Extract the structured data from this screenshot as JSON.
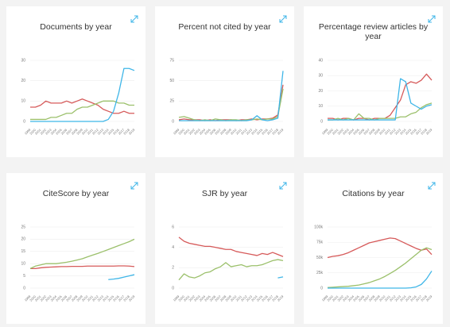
{
  "chart_data": [
    {
      "type": "line",
      "title": "Documents by year",
      "categories": [
        "1999",
        "2000",
        "2001",
        "2002",
        "2003",
        "2004",
        "2005",
        "2006",
        "2007",
        "2008",
        "2009",
        "2010",
        "2011",
        "2012",
        "2013",
        "2014",
        "2015",
        "2016",
        "2017",
        "2018",
        "2019"
      ],
      "ylim": [
        0,
        30
      ],
      "yticks": [
        0,
        10,
        20,
        30
      ],
      "grid": true,
      "series": [
        {
          "color": "#d65a5a",
          "values": [
            7,
            7,
            8,
            10,
            9,
            9,
            9,
            10,
            9,
            10,
            11,
            10,
            9,
            8,
            6,
            5,
            4,
            4,
            5,
            4,
            4
          ]
        },
        {
          "color": "#9bc06b",
          "values": [
            1,
            1,
            1,
            1,
            2,
            2,
            3,
            4,
            4,
            6,
            7,
            7,
            8,
            9,
            10,
            10,
            10,
            9,
            9,
            8,
            8
          ]
        },
        {
          "color": "#3fb6e8",
          "values": [
            0,
            0,
            0,
            0,
            0,
            0,
            0,
            0,
            0,
            0,
            0,
            0,
            0,
            0,
            0,
            1,
            5,
            14,
            26,
            26,
            25
          ]
        }
      ]
    },
    {
      "type": "line",
      "title": "Percent not cited by year",
      "categories": [
        "1999",
        "2000",
        "2001",
        "2002",
        "2003",
        "2004",
        "2005",
        "2006",
        "2007",
        "2008",
        "2009",
        "2010",
        "2011",
        "2012",
        "2013",
        "2014",
        "2015",
        "2016",
        "2017",
        "2018",
        "2019"
      ],
      "ylim": [
        0,
        75
      ],
      "yticks": [
        0,
        25,
        50,
        75
      ],
      "grid": true,
      "series": [
        {
          "color": "#d65a5a",
          "values": [
            2,
            3,
            2,
            2,
            2,
            1,
            2,
            1,
            2,
            2,
            2,
            1,
            2,
            2,
            3,
            2,
            3,
            3,
            4,
            8,
            45
          ]
        },
        {
          "color": "#9bc06b",
          "values": [
            5,
            6,
            4,
            2,
            1,
            2,
            1,
            3,
            2,
            1,
            2,
            2,
            1,
            2,
            2,
            3,
            2,
            3,
            3,
            6,
            40
          ]
        },
        {
          "color": "#3fb6e8",
          "values": [
            1,
            1,
            1,
            1,
            1,
            1,
            1,
            1,
            1,
            1,
            1,
            1,
            1,
            1,
            2,
            7,
            2,
            1,
            2,
            4,
            62
          ]
        }
      ]
    },
    {
      "type": "line",
      "title": "Percentage review articles by year",
      "categories": [
        "1999",
        "2000",
        "2001",
        "2002",
        "2003",
        "2004",
        "2005",
        "2006",
        "2007",
        "2008",
        "2009",
        "2010",
        "2011",
        "2012",
        "2013",
        "2014",
        "2015",
        "2016",
        "2017",
        "2018",
        "2019"
      ],
      "ylim": [
        0,
        40
      ],
      "yticks": [
        0,
        10,
        20,
        30,
        40
      ],
      "grid": true,
      "series": [
        {
          "color": "#d65a5a",
          "values": [
            2,
            2,
            1,
            2,
            2,
            1,
            2,
            2,
            1,
            2,
            2,
            2,
            4,
            9,
            14,
            24,
            26,
            25,
            27,
            31,
            27
          ]
        },
        {
          "color": "#9bc06b",
          "values": [
            1,
            1,
            2,
            1,
            2,
            1,
            5,
            2,
            2,
            1,
            2,
            2,
            2,
            2,
            3,
            3,
            5,
            6,
            9,
            11,
            12
          ]
        },
        {
          "color": "#3fb6e8",
          "values": [
            1,
            1,
            1,
            1,
            1,
            1,
            1,
            1,
            1,
            1,
            1,
            1,
            1,
            1,
            28,
            26,
            12,
            10,
            8,
            10,
            11
          ]
        }
      ]
    },
    {
      "type": "line",
      "title": "CiteScore by year",
      "categories": [
        "1999",
        "2000",
        "2001",
        "2002",
        "2003",
        "2004",
        "2005",
        "2006",
        "2007",
        "2008",
        "2009",
        "2010",
        "2011",
        "2012",
        "2013",
        "2014",
        "2015",
        "2016",
        "2017",
        "2018",
        "2019"
      ],
      "ylim": [
        0,
        25
      ],
      "yticks": [
        0,
        5,
        10,
        15,
        20,
        25
      ],
      "grid": true,
      "series": [
        {
          "color": "#d65a5a",
          "values": [
            8,
            8,
            8.3,
            8.5,
            8.6,
            8.7,
            8.8,
            8.8,
            8.9,
            8.9,
            8.9,
            9,
            9,
            9,
            9,
            9,
            9,
            9.1,
            9.1,
            9,
            8.8
          ]
        },
        {
          "color": "#9bc06b",
          "values": [
            8,
            9,
            9.5,
            10,
            10,
            10,
            10.3,
            10.6,
            11,
            11.5,
            12,
            12.8,
            13.5,
            14.2,
            15,
            15.8,
            16.6,
            17.4,
            18.2,
            19,
            20
          ]
        },
        {
          "color": "#3fb6e8",
          "values": [
            null,
            null,
            null,
            null,
            null,
            null,
            null,
            null,
            null,
            null,
            null,
            null,
            null,
            null,
            null,
            3.5,
            3.7,
            4,
            4.5,
            5,
            5.5
          ]
        }
      ]
    },
    {
      "type": "line",
      "title": "SJR by year",
      "categories": [
        "1999",
        "2000",
        "2001",
        "2002",
        "2003",
        "2004",
        "2005",
        "2006",
        "2007",
        "2008",
        "2009",
        "2010",
        "2011",
        "2012",
        "2013",
        "2014",
        "2015",
        "2016",
        "2017",
        "2018",
        "2019"
      ],
      "ylim": [
        0,
        6
      ],
      "yticks": [
        0,
        2,
        4,
        6
      ],
      "grid": true,
      "series": [
        {
          "color": "#d65a5a",
          "values": [
            5,
            4.6,
            4.4,
            4.3,
            4.2,
            4.1,
            4.1,
            4,
            3.9,
            3.8,
            3.8,
            3.6,
            3.5,
            3.4,
            3.3,
            3.2,
            3.4,
            3.3,
            3.5,
            3.3,
            3.1
          ]
        },
        {
          "color": "#9bc06b",
          "values": [
            0.8,
            1.4,
            1.1,
            1,
            1.2,
            1.5,
            1.6,
            1.9,
            2.1,
            2.5,
            2.1,
            2.2,
            2.3,
            2.1,
            2.2,
            2.2,
            2.3,
            2.5,
            2.7,
            2.8,
            2.7
          ]
        },
        {
          "color": "#3fb6e8",
          "values": [
            null,
            null,
            null,
            null,
            null,
            null,
            null,
            null,
            null,
            null,
            null,
            null,
            null,
            null,
            null,
            null,
            null,
            null,
            null,
            1,
            1.1
          ]
        }
      ]
    },
    {
      "type": "line",
      "title": "Citations by year",
      "categories": [
        "1999",
        "2000",
        "2001",
        "2002",
        "2003",
        "2004",
        "2005",
        "2006",
        "2007",
        "2008",
        "2009",
        "2010",
        "2011",
        "2012",
        "2013",
        "2014",
        "2015",
        "2016",
        "2017",
        "2018",
        "2019"
      ],
      "ylim": [
        0,
        100000
      ],
      "yticks": [
        0,
        {
          "value": 25000,
          "label": "25k"
        },
        {
          "value": 50000,
          "label": "50k"
        },
        {
          "value": 75000,
          "label": "75k"
        },
        {
          "value": 100000,
          "label": "100k"
        }
      ],
      "grid": true,
      "series": [
        {
          "color": "#d65a5a",
          "values": [
            50000,
            52000,
            53000,
            55000,
            58000,
            62000,
            66000,
            70000,
            74000,
            76000,
            78000,
            80000,
            82000,
            81000,
            77000,
            73000,
            69000,
            65000,
            62000,
            64000,
            55000
          ]
        },
        {
          "color": "#9bc06b",
          "values": [
            1000,
            1500,
            2000,
            2500,
            3000,
            4000,
            5000,
            7000,
            9000,
            12000,
            15000,
            19000,
            24000,
            29000,
            35000,
            41000,
            48000,
            55000,
            62000,
            66000,
            63000
          ]
        },
        {
          "color": "#3fb6e8",
          "values": [
            0,
            0,
            0,
            0,
            0,
            0,
            0,
            0,
            0,
            0,
            0,
            0,
            0,
            0,
            0,
            0,
            500,
            2000,
            6000,
            15000,
            28000
          ]
        }
      ]
    }
  ]
}
